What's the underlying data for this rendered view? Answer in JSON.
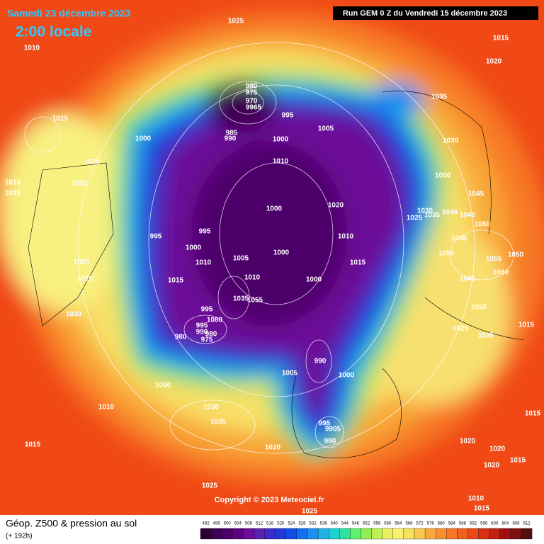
{
  "header": {
    "date": "Samedi 23 décembre 2023",
    "time": "2:00 locale",
    "run": "Run GEM 0 Z du Vendredi 15 décembre 2023"
  },
  "copyright": "Copyright © 2023 Meteociel.fr",
  "footer": {
    "title": "Géop. Z500 & pression au sol",
    "lead": "(+ 192h)"
  },
  "colorbar": {
    "ticks": [
      492,
      496,
      500,
      504,
      508,
      512,
      516,
      520,
      524,
      528,
      532,
      536,
      540,
      544,
      548,
      552,
      556,
      560,
      564,
      568,
      572,
      576,
      580,
      584,
      588,
      592,
      596,
      600,
      604,
      608,
      612
    ],
    "colors": [
      "#2b0033",
      "#3d0050",
      "#4e006a",
      "#5e0082",
      "#6c0f98",
      "#5a20b0",
      "#3a2cc8",
      "#1f3ad8",
      "#1050e8",
      "#1470f0",
      "#1a90f0",
      "#20b0e8",
      "#20d0d0",
      "#30e0a0",
      "#60f070",
      "#90f050",
      "#c0f050",
      "#e8f060",
      "#f8f070",
      "#f8e060",
      "#f8c850",
      "#f8a840",
      "#f89030",
      "#f87828",
      "#f06020",
      "#e84818",
      "#d83010",
      "#c02010",
      "#a01010",
      "#801010",
      "#501010"
    ]
  },
  "isobars": [
    1025,
    1010,
    1015,
    1020,
    980,
    975,
    970,
    9965,
    995,
    1005,
    1035,
    1015,
    1000,
    985,
    990,
    1000,
    1030,
    1020,
    1010,
    1025,
    1050,
    1015,
    1015,
    1045,
    1020,
    1000,
    1030,
    1040,
    1040,
    1025,
    1035,
    1050,
    995,
    995,
    1010,
    1045,
    1000,
    1000,
    1005,
    1050,
    1055,
    1050,
    1010,
    1015,
    1020,
    1060,
    1015,
    1025,
    1010,
    1000,
    1045,
    1035,
    1055,
    995,
    1030,
    1080,
    1050,
    995,
    990,
    980,
    975,
    980,
    1025,
    1035,
    1015,
    990,
    1005,
    1000,
    1000,
    1010,
    1030,
    1035,
    995,
    9905,
    980,
    1015,
    1020,
    1020,
    1020,
    1020,
    1015,
    1015,
    1025,
    1010,
    1015,
    1025
  ]
}
